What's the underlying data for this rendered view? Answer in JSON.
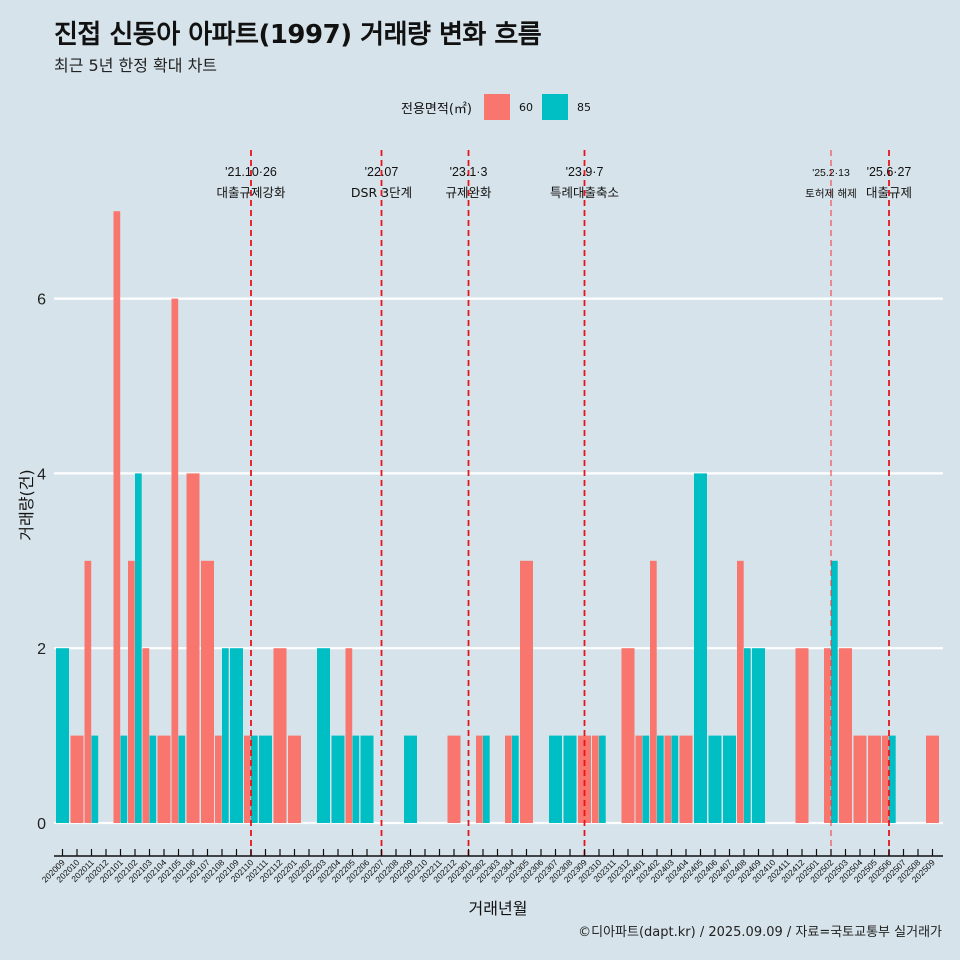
{
  "header": {
    "title": "진접 신동아 아파트(1997) 거래량 변화 흐름",
    "subtitle": "최근 5년 한정 확대 차트"
  },
  "legend": {
    "title": "전용면적(㎡)",
    "items": [
      {
        "label": "60",
        "color": "#F8766D"
      },
      {
        "label": "85",
        "color": "#00BFC4"
      }
    ]
  },
  "caption": "©디아파트(dapt.kr) / 2025.09.09 / 자료=국토교통부 실거래가",
  "chart_data": {
    "type": "bar",
    "title": "진접 신동아 아파트(1997) 거래량 변화 흐름",
    "subtitle": "최근 5년 한정 확대 차트",
    "xlabel": "거래년월",
    "ylabel": "거래량(건)",
    "ylim": [
      0,
      7
    ],
    "yticks": [
      0,
      2,
      4,
      6
    ],
    "grid": "horizontal major",
    "legend_position": "top",
    "bar_mode": "dodge",
    "categories": [
      "202009",
      "202010",
      "202011",
      "202012",
      "202101",
      "202102",
      "202103",
      "202104",
      "202105",
      "202106",
      "202107",
      "202108",
      "202109",
      "202110",
      "202111",
      "202112",
      "202201",
      "202202",
      "202203",
      "202204",
      "202205",
      "202206",
      "202207",
      "202208",
      "202209",
      "202210",
      "202211",
      "202212",
      "202301",
      "202302",
      "202303",
      "202304",
      "202305",
      "202306",
      "202307",
      "202308",
      "202309",
      "202310",
      "202311",
      "202312",
      "202401",
      "202402",
      "202403",
      "202404",
      "202405",
      "202406",
      "202407",
      "202408",
      "202409",
      "202410",
      "202411",
      "202412",
      "202501",
      "202502",
      "202503",
      "202504",
      "202505",
      "202506",
      "202507",
      "202508",
      "202509"
    ],
    "series": [
      {
        "name": "60",
        "color": "#F8766D",
        "values": [
          0,
          1,
          3,
          0,
          7,
          3,
          2,
          1,
          6,
          4,
          3,
          1,
          0,
          1,
          0,
          2,
          1,
          0,
          0,
          0,
          2,
          0,
          0,
          0,
          0,
          0,
          0,
          1,
          0,
          1,
          0,
          1,
          3,
          0,
          0,
          0,
          1,
          1,
          0,
          2,
          1,
          3,
          1,
          1,
          0,
          0,
          0,
          3,
          0,
          0,
          0,
          2,
          0,
          2,
          2,
          1,
          1,
          1,
          0,
          0,
          1
        ]
      },
      {
        "name": "85",
        "color": "#00BFC4",
        "values": [
          2,
          0,
          1,
          0,
          1,
          4,
          1,
          0,
          1,
          0,
          0,
          2,
          2,
          1,
          1,
          0,
          0,
          0,
          2,
          1,
          1,
          1,
          0,
          0,
          1,
          0,
          0,
          0,
          0,
          1,
          0,
          1,
          0,
          0,
          1,
          1,
          0,
          1,
          0,
          0,
          1,
          1,
          1,
          0,
          4,
          1,
          1,
          2,
          2,
          0,
          0,
          0,
          0,
          3,
          0,
          0,
          0,
          1,
          0,
          0,
          0
        ]
      }
    ],
    "annotations": [
      {
        "month": "202110",
        "date": "'21.10·26",
        "label": "대출규제강화",
        "style": "major"
      },
      {
        "month": "202207",
        "date": "'22.07",
        "label": "DSR 3단계",
        "style": "major"
      },
      {
        "month": "202301",
        "date": "'23.1·3",
        "label": "규제완화",
        "style": "major"
      },
      {
        "month": "202309",
        "date": "'23.9·7",
        "label": "특례대출축소",
        "style": "major"
      },
      {
        "month": "202502",
        "date": "'25.2·13",
        "label": "토허제 해제",
        "style": "minor"
      },
      {
        "month": "202506",
        "date": "'25.6·27",
        "label": "대출규제",
        "style": "major"
      }
    ]
  }
}
